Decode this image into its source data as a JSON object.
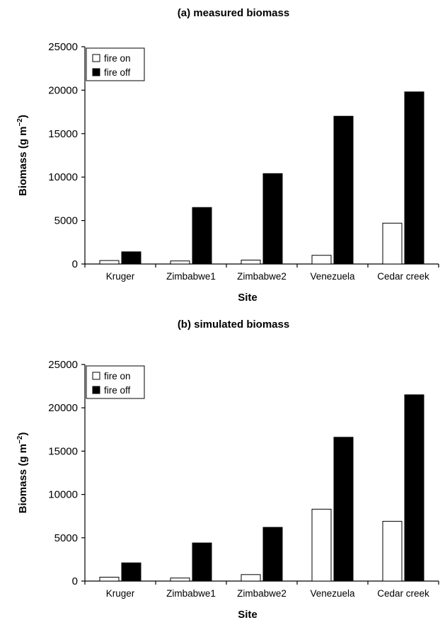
{
  "chart_data": [
    {
      "type": "bar",
      "title": "(a) measured biomass",
      "xlabel": "Site",
      "ylabel_main": "Biomass (g m",
      "ylabel_sup": "−2",
      "ylabel_close": ")",
      "ylim": [
        0,
        25000
      ],
      "yticks": [
        "0",
        "5000",
        "10000",
        "15000",
        "20000",
        "25000"
      ],
      "yticks_values": [
        0,
        5000,
        10000,
        15000,
        20000,
        25000
      ],
      "categories": [
        "Kruger",
        "Zimbabwe1",
        "Zimbabwe2",
        "Venezuela",
        "Cedar creek"
      ],
      "legend_placement": "top-left",
      "series": [
        {
          "name": "fire on",
          "color": "#ffffff",
          "values": [
            400,
            350,
            450,
            1000,
            4700
          ]
        },
        {
          "name": "fire off",
          "color": "#000000",
          "values": [
            1400,
            6500,
            10400,
            17000,
            19800
          ]
        }
      ]
    },
    {
      "type": "bar",
      "title": "(b) simulated biomass",
      "xlabel": "Site",
      "ylabel_main": "Biomass (g m",
      "ylabel_sup": "−2",
      "ylabel_close": ")",
      "ylim": [
        0,
        25000
      ],
      "yticks": [
        "0",
        "5000",
        "10000",
        "15000",
        "20000",
        "25000"
      ],
      "yticks_values": [
        0,
        5000,
        10000,
        15000,
        20000,
        25000
      ],
      "categories": [
        "Kruger",
        "Zimbabwe1",
        "Zimbabwe2",
        "Venezuela",
        "Cedar creek"
      ],
      "legend_placement": "top-left",
      "series": [
        {
          "name": "fire on",
          "color": "#ffffff",
          "values": [
            450,
            350,
            750,
            8300,
            6900
          ]
        },
        {
          "name": "fire off",
          "color": "#000000",
          "values": [
            2100,
            4400,
            6200,
            16600,
            21500
          ]
        }
      ]
    }
  ]
}
